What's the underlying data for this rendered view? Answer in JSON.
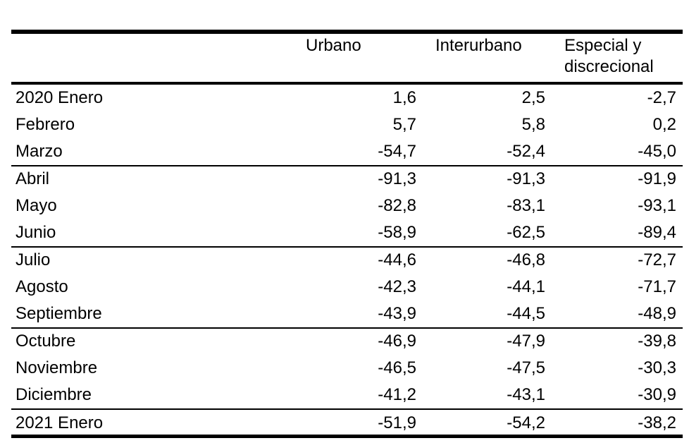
{
  "table": {
    "headers": {
      "label": "",
      "urbano": "Urbano",
      "interurbano": "Interurbano",
      "especial_line1": "Especial y",
      "especial_line2": "discrecional"
    },
    "rows": [
      {
        "label": "2020 Enero",
        "urbano": "1,6",
        "interurbano": "2,5",
        "especial": "-2,7"
      },
      {
        "label": "Febrero",
        "urbano": "5,7",
        "interurbano": "5,8",
        "especial": "0,2"
      },
      {
        "label": "Marzo",
        "urbano": "-54,7",
        "interurbano": "-52,4",
        "especial": "-45,0"
      },
      {
        "label": "Abril",
        "urbano": "-91,3",
        "interurbano": "-91,3",
        "especial": "-91,9"
      },
      {
        "label": "Mayo",
        "urbano": "-82,8",
        "interurbano": "-83,1",
        "especial": "-93,1"
      },
      {
        "label": "Junio",
        "urbano": "-58,9",
        "interurbano": "-62,5",
        "especial": "-89,4"
      },
      {
        "label": "Julio",
        "urbano": "-44,6",
        "interurbano": "-46,8",
        "especial": "-72,7"
      },
      {
        "label": "Agosto",
        "urbano": "-42,3",
        "interurbano": "-44,1",
        "especial": "-71,7"
      },
      {
        "label": "Septiembre",
        "urbano": "-43,9",
        "interurbano": "-44,5",
        "especial": "-48,9"
      },
      {
        "label": "Octubre",
        "urbano": "-46,9",
        "interurbano": "-47,9",
        "especial": "-39,8"
      },
      {
        "label": "Noviembre",
        "urbano": "-46,5",
        "interurbano": "-47,5",
        "especial": "-30,3"
      },
      {
        "label": "Diciembre",
        "urbano": "-41,2",
        "interurbano": "-43,1",
        "especial": "-30,9"
      },
      {
        "label": "2021 Enero",
        "urbano": "-51,9",
        "interurbano": "-54,2",
        "especial": "-38,2"
      }
    ]
  }
}
